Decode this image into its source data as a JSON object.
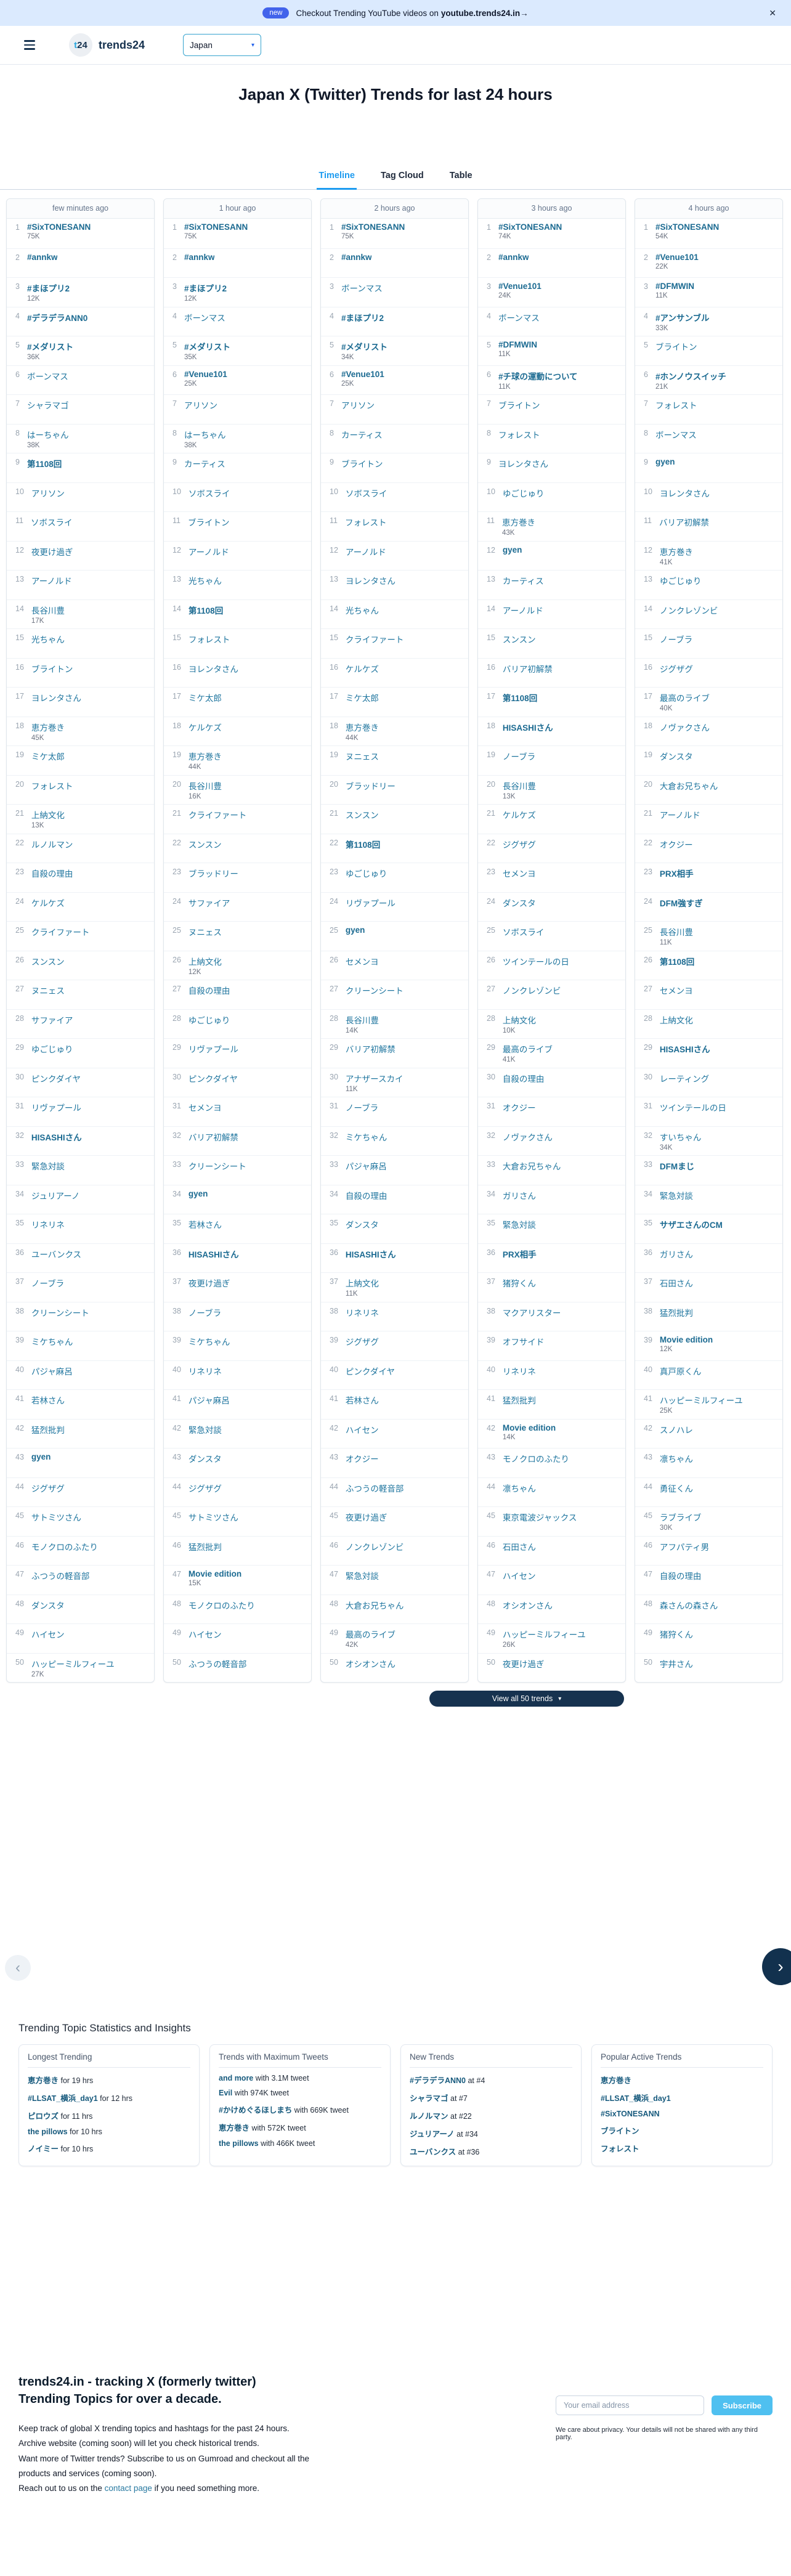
{
  "banner": {
    "badge": "new",
    "text_pre": "Checkout Trending YouTube videos on",
    "text_link": "youtube.trends24.in→",
    "close": "✕"
  },
  "nav": {
    "logo_t": "t",
    "logo_num": "24",
    "brand": "trends24",
    "country": "Japan",
    "chevron": "▾"
  },
  "title": "Japan X (Twitter) Trends for last 24 hours",
  "tabs": [
    {
      "label": "Timeline",
      "active": true
    },
    {
      "label": "Tag Cloud",
      "active": false
    },
    {
      "label": "Table",
      "active": false
    }
  ],
  "view_all": {
    "label": "View all 50 trends",
    "chevron": "▾"
  },
  "carousel": {
    "prev": "‹",
    "next": "›"
  },
  "colors": {
    "banner_bg": "#dbeafe",
    "badge_bg": "#4263eb",
    "active_tab": "#1d9bf0",
    "trend_link": "#20769f",
    "navy_button": "#16324f",
    "subscribe_button": "#4fc0f0"
  },
  "columns": [
    {
      "time": "few minutes ago",
      "trends": [
        {
          "n": "#SixTONESANN",
          "c": "75K"
        },
        {
          "n": "#annkw"
        },
        {
          "n": "#まほプリ2",
          "c": "12K"
        },
        {
          "n": "#デラデラANN0"
        },
        {
          "n": "#メダリスト",
          "c": "36K"
        },
        {
          "n": "ボーンマス"
        },
        {
          "n": "シャラマゴ"
        },
        {
          "n": "はーちゃん",
          "c": "38K"
        },
        {
          "n": "第1108回"
        },
        {
          "n": "アリソン"
        },
        {
          "n": "ソボスライ"
        },
        {
          "n": "夜更け過ぎ"
        },
        {
          "n": "アーノルド"
        },
        {
          "n": "長谷川豊",
          "c": "17K"
        },
        {
          "n": "光ちゃん"
        },
        {
          "n": "ブライトン"
        },
        {
          "n": "ヨレンタさん"
        },
        {
          "n": "恵方巻き",
          "c": "45K"
        },
        {
          "n": "ミケ太郎"
        },
        {
          "n": "フォレスト"
        },
        {
          "n": "上納文化",
          "c": "13K"
        },
        {
          "n": "ルノルマン"
        },
        {
          "n": "自殺の理由"
        },
        {
          "n": "ケルケズ"
        },
        {
          "n": "クライファート"
        },
        {
          "n": "スンスン"
        },
        {
          "n": "ヌニェス"
        },
        {
          "n": "サファイア"
        },
        {
          "n": "ゆごじゅり"
        },
        {
          "n": "ピンクダイヤ"
        },
        {
          "n": "リヴァプール"
        },
        {
          "n": "HISASHIさん"
        },
        {
          "n": "緊急対談"
        },
        {
          "n": "ジュリアーノ"
        },
        {
          "n": "リネリネ"
        },
        {
          "n": "ユーバンクス"
        },
        {
          "n": "ノーブラ"
        },
        {
          "n": "クリーンシート"
        },
        {
          "n": "ミケちゃん"
        },
        {
          "n": "パジャ麻呂"
        },
        {
          "n": "若林さん"
        },
        {
          "n": "猛烈批判"
        },
        {
          "n": "gyen"
        },
        {
          "n": "ジグザグ"
        },
        {
          "n": "サトミツさん"
        },
        {
          "n": "モノクロのふたり"
        },
        {
          "n": "ふつうの軽音部"
        },
        {
          "n": "ダンスタ"
        },
        {
          "n": "ハイセン"
        },
        {
          "n": "ハッピーミルフィーユ",
          "c": "27K"
        }
      ]
    },
    {
      "time": "1 hour ago",
      "trends": [
        {
          "n": "#SixTONESANN",
          "c": "75K"
        },
        {
          "n": "#annkw"
        },
        {
          "n": "#まほプリ2",
          "c": "12K"
        },
        {
          "n": "ボーンマス"
        },
        {
          "n": "#メダリスト",
          "c": "35K"
        },
        {
          "n": "#Venue101",
          "c": "25K"
        },
        {
          "n": "アリソン"
        },
        {
          "n": "はーちゃん",
          "c": "38K"
        },
        {
          "n": "カーティス"
        },
        {
          "n": "ソボスライ"
        },
        {
          "n": "ブライトン"
        },
        {
          "n": "アーノルド"
        },
        {
          "n": "光ちゃん"
        },
        {
          "n": "第1108回"
        },
        {
          "n": "フォレスト"
        },
        {
          "n": "ヨレンタさん"
        },
        {
          "n": "ミケ太郎"
        },
        {
          "n": "ケルケズ"
        },
        {
          "n": "恵方巻き",
          "c": "44K"
        },
        {
          "n": "長谷川豊",
          "c": "16K"
        },
        {
          "n": "クライファート"
        },
        {
          "n": "スンスン"
        },
        {
          "n": "ブラッドリー"
        },
        {
          "n": "サファイア"
        },
        {
          "n": "ヌニェス"
        },
        {
          "n": "上納文化",
          "c": "12K"
        },
        {
          "n": "自殺の理由"
        },
        {
          "n": "ゆごじゅり"
        },
        {
          "n": "リヴァプール"
        },
        {
          "n": "ピンクダイヤ"
        },
        {
          "n": "セメンヨ"
        },
        {
          "n": "バリア初解禁"
        },
        {
          "n": "クリーンシート"
        },
        {
          "n": "gyen"
        },
        {
          "n": "若林さん"
        },
        {
          "n": "HISASHIさん"
        },
        {
          "n": "夜更け過ぎ"
        },
        {
          "n": "ノーブラ"
        },
        {
          "n": "ミケちゃん"
        },
        {
          "n": "リネリネ"
        },
        {
          "n": "パジャ麻呂"
        },
        {
          "n": "緊急対談"
        },
        {
          "n": "ダンスタ"
        },
        {
          "n": "ジグザグ"
        },
        {
          "n": "サトミツさん"
        },
        {
          "n": "猛烈批判"
        },
        {
          "n": "Movie edition",
          "c": "15K"
        },
        {
          "n": "モノクロのふたり"
        },
        {
          "n": "ハイセン"
        },
        {
          "n": "ふつうの軽音部"
        }
      ]
    },
    {
      "time": "2 hours ago",
      "trends": [
        {
          "n": "#SixTONESANN",
          "c": "75K"
        },
        {
          "n": "#annkw"
        },
        {
          "n": "ボーンマス"
        },
        {
          "n": "#まほプリ2"
        },
        {
          "n": "#メダリスト",
          "c": "34K"
        },
        {
          "n": "#Venue101",
          "c": "25K"
        },
        {
          "n": "アリソン"
        },
        {
          "n": "カーティス"
        },
        {
          "n": "ブライトン"
        },
        {
          "n": "ソボスライ"
        },
        {
          "n": "フォレスト"
        },
        {
          "n": "アーノルド"
        },
        {
          "n": "ヨレンタさん"
        },
        {
          "n": "光ちゃん"
        },
        {
          "n": "クライファート"
        },
        {
          "n": "ケルケズ"
        },
        {
          "n": "ミケ太郎"
        },
        {
          "n": "恵方巻き",
          "c": "44K"
        },
        {
          "n": "ヌニェス"
        },
        {
          "n": "ブラッドリー"
        },
        {
          "n": "スンスン"
        },
        {
          "n": "第1108回"
        },
        {
          "n": "ゆごじゅり"
        },
        {
          "n": "リヴァプール"
        },
        {
          "n": "gyen"
        },
        {
          "n": "セメンヨ"
        },
        {
          "n": "クリーンシート"
        },
        {
          "n": "長谷川豊",
          "c": "14K"
        },
        {
          "n": "バリア初解禁"
        },
        {
          "n": "アナザースカイ",
          "c": "11K"
        },
        {
          "n": "ノーブラ"
        },
        {
          "n": "ミケちゃん"
        },
        {
          "n": "パジャ麻呂"
        },
        {
          "n": "自殺の理由"
        },
        {
          "n": "ダンスタ"
        },
        {
          "n": "HISASHIさん"
        },
        {
          "n": "上納文化",
          "c": "11K"
        },
        {
          "n": "リネリネ"
        },
        {
          "n": "ジグザグ"
        },
        {
          "n": "ピンクダイヤ"
        },
        {
          "n": "若林さん"
        },
        {
          "n": "ハイセン"
        },
        {
          "n": "オクジー"
        },
        {
          "n": "ふつうの軽音部"
        },
        {
          "n": "夜更け過ぎ"
        },
        {
          "n": "ノンクレゾンビ"
        },
        {
          "n": "緊急対談"
        },
        {
          "n": "大倉お兄ちゃん"
        },
        {
          "n": "最高のライブ",
          "c": "42K"
        },
        {
          "n": "オシオンさん"
        }
      ]
    },
    {
      "time": "3 hours ago",
      "trends": [
        {
          "n": "#SixTONESANN",
          "c": "74K"
        },
        {
          "n": "#annkw"
        },
        {
          "n": "#Venue101",
          "c": "24K"
        },
        {
          "n": "ボーンマス"
        },
        {
          "n": "#DFMWIN",
          "c": "11K"
        },
        {
          "n": "#チ球の運動について",
          "c": "11K"
        },
        {
          "n": "ブライトン"
        },
        {
          "n": "フォレスト"
        },
        {
          "n": "ヨレンタさん"
        },
        {
          "n": "ゆごじゅり"
        },
        {
          "n": "恵方巻き",
          "c": "43K"
        },
        {
          "n": "gyen"
        },
        {
          "n": "カーティス"
        },
        {
          "n": "アーノルド"
        },
        {
          "n": "スンスン"
        },
        {
          "n": "バリア初解禁"
        },
        {
          "n": "第1108回"
        },
        {
          "n": "HISASHIさん"
        },
        {
          "n": "ノーブラ"
        },
        {
          "n": "長谷川豊",
          "c": "13K"
        },
        {
          "n": "ケルケズ"
        },
        {
          "n": "ジグザグ"
        },
        {
          "n": "セメンヨ"
        },
        {
          "n": "ダンスタ"
        },
        {
          "n": "ソボスライ"
        },
        {
          "n": "ツインテールの日"
        },
        {
          "n": "ノンクレゾンビ"
        },
        {
          "n": "上納文化",
          "c": "10K"
        },
        {
          "n": "最高のライブ",
          "c": "41K"
        },
        {
          "n": "自殺の理由"
        },
        {
          "n": "オクジー"
        },
        {
          "n": "ノヴァクさん"
        },
        {
          "n": "大倉お兄ちゃん"
        },
        {
          "n": "ガリさん"
        },
        {
          "n": "緊急対談"
        },
        {
          "n": "PRX相手"
        },
        {
          "n": "猪狩くん"
        },
        {
          "n": "マクアリスター"
        },
        {
          "n": "オフサイド"
        },
        {
          "n": "リネリネ"
        },
        {
          "n": "猛烈批判"
        },
        {
          "n": "Movie edition",
          "c": "14K"
        },
        {
          "n": "モノクロのふたり"
        },
        {
          "n": "凛ちゃん"
        },
        {
          "n": "東京電波ジャックス"
        },
        {
          "n": "石田さん"
        },
        {
          "n": "ハイセン"
        },
        {
          "n": "オシオンさん"
        },
        {
          "n": "ハッピーミルフィーユ",
          "c": "26K"
        },
        {
          "n": "夜更け過ぎ"
        }
      ]
    },
    {
      "time": "4 hours ago",
      "trends": [
        {
          "n": "#SixTONESANN",
          "c": "54K"
        },
        {
          "n": "#Venue101",
          "c": "22K"
        },
        {
          "n": "#DFMWIN",
          "c": "11K"
        },
        {
          "n": "#アンサンブル",
          "c": "33K"
        },
        {
          "n": "ブライトン"
        },
        {
          "n": "#ホンノウスイッチ",
          "c": "21K"
        },
        {
          "n": "フォレスト"
        },
        {
          "n": "ボーンマス"
        },
        {
          "n": "gyen"
        },
        {
          "n": "ヨレンタさん"
        },
        {
          "n": "バリア初解禁"
        },
        {
          "n": "恵方巻き",
          "c": "41K"
        },
        {
          "n": "ゆごじゅり"
        },
        {
          "n": "ノンクレゾンビ"
        },
        {
          "n": "ノーブラ"
        },
        {
          "n": "ジグザグ"
        },
        {
          "n": "最高のライブ",
          "c": "40K"
        },
        {
          "n": "ノヴァクさん"
        },
        {
          "n": "ダンスタ"
        },
        {
          "n": "大倉お兄ちゃん"
        },
        {
          "n": "アーノルド"
        },
        {
          "n": "オクジー"
        },
        {
          "n": "PRX相手"
        },
        {
          "n": "DFM強すぎ"
        },
        {
          "n": "長谷川豊",
          "c": "11K"
        },
        {
          "n": "第1108回"
        },
        {
          "n": "セメンヨ"
        },
        {
          "n": "上納文化"
        },
        {
          "n": "HISASHIさん"
        },
        {
          "n": "レーティング"
        },
        {
          "n": "ツインテールの日"
        },
        {
          "n": "すいちゃん",
          "c": "34K"
        },
        {
          "n": "DFMまじ"
        },
        {
          "n": "緊急対談"
        },
        {
          "n": "サザエさんのCM"
        },
        {
          "n": "ガリさん"
        },
        {
          "n": "石田さん"
        },
        {
          "n": "猛烈批判"
        },
        {
          "n": "Movie edition",
          "c": "12K"
        },
        {
          "n": "真戸原くん"
        },
        {
          "n": "ハッピーミルフィーユ",
          "c": "25K"
        },
        {
          "n": "スノハレ"
        },
        {
          "n": "凛ちゃん"
        },
        {
          "n": "勇征くん"
        },
        {
          "n": "ラブライブ",
          "c": "30K"
        },
        {
          "n": "アフパティ男"
        },
        {
          "n": "自殺の理由"
        },
        {
          "n": "森さんの森さん"
        },
        {
          "n": "猪狩くん"
        },
        {
          "n": "宇井さん"
        }
      ]
    }
  ],
  "stats": {
    "title": "Trending Topic Statistics and Insights",
    "cards": [
      {
        "title": "Longest Trending",
        "items": [
          {
            "t": "恵方巻き",
            "rest": " for 19 hrs"
          },
          {
            "t": "#LLSAT_横浜_day1",
            "rest": " for 12 hrs"
          },
          {
            "t": "ピロウズ",
            "rest": " for 11 hrs"
          },
          {
            "t": "the pillows",
            "rest": " for 10 hrs"
          },
          {
            "t": "ノイミー",
            "rest": " for 10 hrs"
          }
        ]
      },
      {
        "title": "Trends with Maximum Tweets",
        "items": [
          {
            "t": "and more",
            "rest": " with 3.1M tweet"
          },
          {
            "t": "Evil",
            "rest": " with 974K tweet"
          },
          {
            "t": "#かけめぐるほしまち",
            "rest": " with 669K tweet"
          },
          {
            "t": "恵方巻き",
            "rest": " with 572K tweet"
          },
          {
            "t": "the pillows",
            "rest": " with 466K tweet"
          }
        ]
      },
      {
        "title": "New Trends",
        "items": [
          {
            "t": "#デラデラANN0",
            "rest": " at #4"
          },
          {
            "t": "シャラマゴ",
            "rest": " at #7"
          },
          {
            "t": "ルノルマン",
            "rest": " at #22"
          },
          {
            "t": "ジュリアーノ",
            "rest": " at #34"
          },
          {
            "t": "ユーバンクス",
            "rest": " at #36"
          }
        ]
      },
      {
        "title": "Popular Active Trends",
        "items": [
          {
            "t": "恵方巻き",
            "rest": ""
          },
          {
            "t": "#LLSAT_横浜_day1",
            "rest": ""
          },
          {
            "t": "#SixTONESANN",
            "rest": ""
          },
          {
            "t": "ブライトン",
            "rest": ""
          },
          {
            "t": "フォレスト",
            "rest": ""
          }
        ]
      }
    ]
  },
  "footer": {
    "heading_line1": "trends24.in - tracking X (formerly twitter)",
    "heading_line2": "Trending Topics for over a decade.",
    "body": [
      "Keep track of global X trending topics and hashtags for the past 24 hours.",
      "Archive website (coming soon) will let you check historical trends.",
      "Want more of Twitter trends? Subscribe to us on Gumroad and checkout all the products and services (coming soon)."
    ],
    "reach_pre": "Reach out to us on the ",
    "reach_link": "contact page",
    "reach_post": " if you need something more.",
    "email_placeholder": "Your email address",
    "subscribe_label": "Subscribe",
    "privacy": "We care about privacy. Your details will not be shared with any third party."
  }
}
